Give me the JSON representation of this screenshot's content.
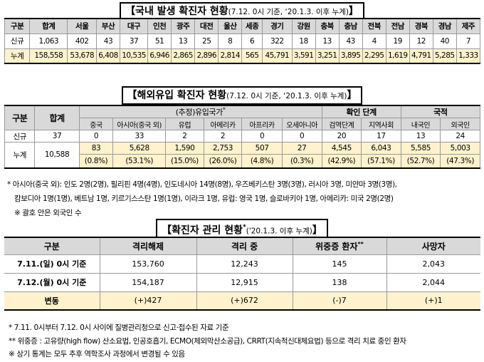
{
  "domestic": {
    "title_main": "【국내 발생 확진자 현황",
    "title_sub": "(7.12. 0시 기준, ‘20.1.3. 이후 누계)",
    "title_end": "】",
    "columns": [
      "구분",
      "합계",
      "서울",
      "부산",
      "대구",
      "인천",
      "광주",
      "대전",
      "울산",
      "세종",
      "경기",
      "강원",
      "충북",
      "충남",
      "전북",
      "전남",
      "경북",
      "경남",
      "제주"
    ],
    "rows": [
      {
        "label": "신규",
        "values": [
          "1,063",
          "402",
          "43",
          "37",
          "51",
          "13",
          "25",
          "8",
          "6",
          "322",
          "18",
          "13",
          "43",
          "4",
          "19",
          "12",
          "40",
          "7"
        ]
      },
      {
        "label": "누계",
        "values": [
          "158,558",
          "53,678",
          "6,408",
          "10,535",
          "6,946",
          "2,865",
          "2,896",
          "2,814",
          "565",
          "45,791",
          "3,591",
          "3,251",
          "3,895",
          "2,295",
          "1,619",
          "4,791",
          "5,285",
          "1,333"
        ]
      }
    ]
  },
  "overseas": {
    "title_main": "【해외유입 확진자 현황",
    "title_sub": "(7.12. 0시 기준, ‘20.1.3. 이후 누계)",
    "title_end": "】",
    "header_label": "구분",
    "header_total": "합계",
    "group_region": "(추정)유입국가",
    "group_region_mark": "*",
    "group_stage": "확인 단계",
    "group_nationality": "국적",
    "subcols": [
      "중국",
      "아시아(중국 외)",
      "유럽",
      "아메리카",
      "아프리카",
      "오세아니아",
      "검역단계",
      "지역사회",
      "내국인",
      "외국인"
    ],
    "new": {
      "label": "신규",
      "total": "37",
      "values": [
        "0",
        "33",
        "2",
        "2",
        "0",
        "0",
        "20",
        "17",
        "13",
        "24"
      ]
    },
    "cumulative": {
      "label": "누계",
      "total": "10,588",
      "values": [
        "83",
        "5,628",
        "1,590",
        "2,753",
        "507",
        "27",
        "4,545",
        "6,043",
        "5,585",
        "5,003"
      ],
      "shares": [
        "(0.8%)",
        "(53.1%)",
        "(15.0%)",
        "(26.0%)",
        "(4.8%)",
        "(0.3%)",
        "(42.9%)",
        "(57.1%)",
        "(52.7%)",
        "(47.3%)"
      ]
    },
    "notes": [
      "* 아시아(중국 외): 인도 2명(2명), 필리핀 4명(4명), 인도네시아 14명(8명), 우즈베키스탄 3명(3명), 러시아 3명, 미얀마 3명(3명),",
      "캄보디아 1명(1명), 베트남 1명, 키르기스스탄 1명(1명), 이라크 1명, 유럽: 영국 1명, 슬로바키아 1명, 아메리카: 미국 2명(2명)",
      "※ 괄호 안은 외국인 수"
    ]
  },
  "management": {
    "title_main": "【확진자 관리 현황",
    "title_mark": "*",
    "title_sub": "('20.1.3. 이후 누계)",
    "title_end": "】",
    "columns": [
      "구분",
      "격리해제",
      "격리 중",
      "위중증 환자",
      "사망자"
    ],
    "critical_mark": "**",
    "rows": [
      {
        "label": "7.11.(일) 0시 기준",
        "values": [
          "153,760",
          "12,243",
          "145",
          "2,043"
        ]
      },
      {
        "label": "7.12.(월) 0시 기준",
        "values": [
          "154,187",
          "12,915",
          "138",
          "2,044"
        ]
      },
      {
        "label": "변동",
        "values": [
          "(+)427",
          "(+)672",
          "(-)7",
          "(+)1"
        ]
      }
    ],
    "notes": [
      "*  7.11. 0시부터 7.12. 0시 사이에 질병관리청으로 신고·접수된 자료 기준",
      "** 위중증 : 고유량(high flow) 산소요법, 인공호흡기, ECMO(체외막산소공급), CRRT(지속적신대체요법) 등으로 격리 치료 중인 환자",
      "※ 상기 통계는 모두 추후 역학조사 과정에서 변경될 수 있음"
    ]
  }
}
